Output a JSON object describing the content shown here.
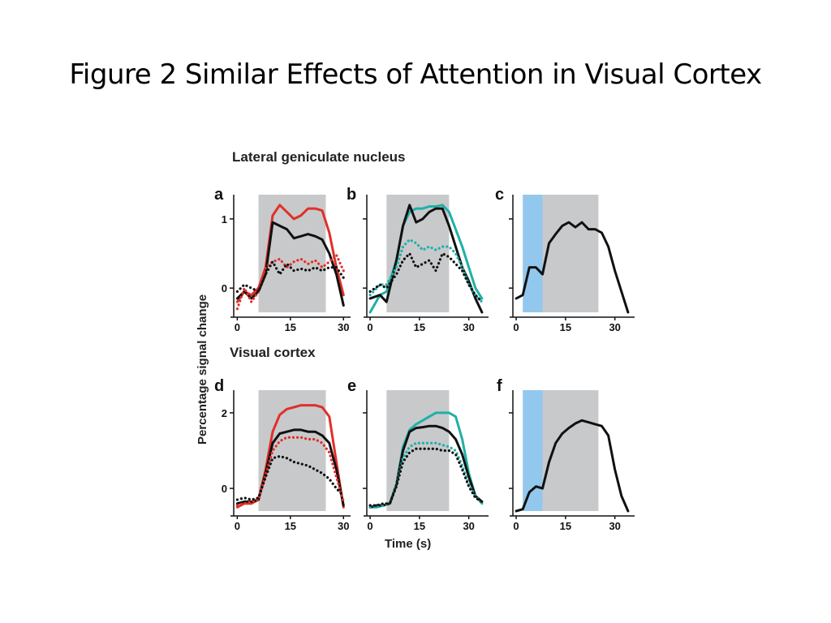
{
  "slide": {
    "title": "Figure 2 Similar Effects of Attention in Visual Cortex"
  },
  "figure": {
    "top_section_label": "Lateral geniculate nucleus",
    "bottom_section_label": "Visual cortex",
    "ylabel": "Percentage signal change",
    "xlabel": "Time (s)"
  },
  "colors": {
    "red": "#e0302a",
    "teal": "#1fb0a8",
    "black": "#111111",
    "gray_band": "#c8c9cb",
    "blue_band": "#93c8ee"
  },
  "chart_data": [
    {
      "panel": "a",
      "type": "line",
      "xlim": [
        -1,
        32
      ],
      "ylim": [
        -0.35,
        1.35
      ],
      "xticks": [
        0,
        15,
        30
      ],
      "yticks": [
        {
          "v": 1,
          "label": "1"
        },
        {
          "v": 0,
          "label": "0"
        }
      ],
      "bands": [
        {
          "from": 6,
          "to": 25,
          "color": "gray"
        }
      ],
      "series": [
        {
          "name": "attended (red)",
          "color": "red",
          "style": "solid",
          "x": [
            0,
            2,
            4,
            6,
            8,
            10,
            12,
            14,
            16,
            18,
            20,
            22,
            24,
            26,
            28,
            30
          ],
          "y": [
            -0.2,
            -0.05,
            -0.1,
            0.0,
            0.3,
            1.05,
            1.2,
            1.1,
            1.0,
            1.05,
            1.15,
            1.15,
            1.12,
            0.8,
            0.3,
            -0.1
          ]
        },
        {
          "name": "attended (black)",
          "color": "black",
          "style": "solid",
          "x": [
            0,
            2,
            4,
            6,
            8,
            10,
            12,
            14,
            16,
            18,
            20,
            22,
            24,
            26,
            28,
            30
          ],
          "y": [
            -0.15,
            -0.05,
            -0.15,
            -0.05,
            0.2,
            0.95,
            0.9,
            0.85,
            0.72,
            0.75,
            0.78,
            0.75,
            0.7,
            0.5,
            0.2,
            -0.25
          ]
        },
        {
          "name": "unattended (red)",
          "color": "red",
          "style": "dotted",
          "x": [
            0,
            2,
            4,
            6,
            8,
            10,
            12,
            14,
            16,
            18,
            20,
            22,
            24,
            26,
            28,
            30
          ],
          "y": [
            -0.3,
            0.0,
            -0.2,
            -0.05,
            0.3,
            0.38,
            0.42,
            0.3,
            0.38,
            0.42,
            0.35,
            0.4,
            0.3,
            0.38,
            0.48,
            0.25
          ]
        },
        {
          "name": "unattended (black)",
          "color": "black",
          "style": "dotted",
          "x": [
            0,
            2,
            4,
            6,
            8,
            10,
            12,
            14,
            16,
            18,
            20,
            22,
            24,
            26,
            28,
            30
          ],
          "y": [
            -0.05,
            0.05,
            0.0,
            -0.05,
            0.2,
            0.38,
            0.2,
            0.35,
            0.25,
            0.28,
            0.25,
            0.3,
            0.25,
            0.3,
            0.3,
            0.15
          ]
        }
      ]
    },
    {
      "panel": "b",
      "type": "line",
      "xlim": [
        -1,
        36
      ],
      "ylim": [
        -0.35,
        1.35
      ],
      "xticks": [
        0,
        15,
        30
      ],
      "yticks": [
        {
          "v": 1,
          "label": ""
        },
        {
          "v": 0,
          "label": ""
        }
      ],
      "bands": [
        {
          "from": 5,
          "to": 24,
          "color": "gray"
        }
      ],
      "series": [
        {
          "name": "attended (teal)",
          "color": "teal",
          "style": "solid",
          "x": [
            0,
            3,
            5,
            8,
            10,
            12,
            14,
            16,
            18,
            20,
            22,
            24,
            26,
            28,
            30,
            32,
            34
          ],
          "y": [
            -0.35,
            -0.1,
            -0.05,
            0.4,
            0.9,
            1.1,
            1.15,
            1.15,
            1.18,
            1.18,
            1.2,
            1.1,
            0.85,
            0.6,
            0.3,
            0.0,
            -0.15
          ]
        },
        {
          "name": "attended (black)",
          "color": "black",
          "style": "solid",
          "x": [
            0,
            3,
            5,
            8,
            10,
            12,
            14,
            16,
            18,
            20,
            22,
            24,
            26,
            28,
            30,
            32,
            34
          ],
          "y": [
            -0.15,
            -0.1,
            -0.2,
            0.4,
            0.9,
            1.2,
            0.95,
            1.0,
            1.1,
            1.15,
            1.15,
            0.9,
            0.6,
            0.3,
            0.1,
            -0.15,
            -0.35
          ]
        },
        {
          "name": "unattended (teal)",
          "color": "teal",
          "style": "dotted",
          "x": [
            0,
            3,
            5,
            8,
            10,
            12,
            14,
            16,
            18,
            20,
            22,
            24,
            26,
            28,
            30,
            32,
            34
          ],
          "y": [
            -0.1,
            0.05,
            0.05,
            0.3,
            0.6,
            0.7,
            0.65,
            0.55,
            0.6,
            0.55,
            0.6,
            0.6,
            0.5,
            0.3,
            0.05,
            -0.1,
            -0.2
          ]
        },
        {
          "name": "unattended (black)",
          "color": "black",
          "style": "dotted",
          "x": [
            0,
            3,
            5,
            8,
            10,
            12,
            14,
            16,
            18,
            20,
            22,
            24,
            26,
            28,
            30,
            32,
            34
          ],
          "y": [
            -0.05,
            0.05,
            0.0,
            0.2,
            0.4,
            0.5,
            0.3,
            0.35,
            0.4,
            0.25,
            0.5,
            0.45,
            0.35,
            0.25,
            0.05,
            -0.1,
            -0.2
          ]
        }
      ]
    },
    {
      "panel": "c",
      "type": "line",
      "xlim": [
        -1,
        36
      ],
      "ylim": [
        -0.35,
        1.35
      ],
      "xticks": [
        0,
        15,
        30
      ],
      "yticks": [
        {
          "v": 1,
          "label": ""
        },
        {
          "v": 0,
          "label": ""
        }
      ],
      "bands": [
        {
          "from": 2,
          "to": 8,
          "color": "blue"
        },
        {
          "from": 8,
          "to": 25,
          "color": "gray"
        }
      ],
      "series": [
        {
          "name": "response",
          "color": "black",
          "style": "solid",
          "x": [
            0,
            2,
            4,
            6,
            8,
            10,
            12,
            14,
            16,
            18,
            20,
            22,
            24,
            26,
            28,
            30,
            32,
            34
          ],
          "y": [
            -0.15,
            -0.1,
            0.3,
            0.3,
            0.2,
            0.65,
            0.78,
            0.9,
            0.95,
            0.88,
            0.95,
            0.85,
            0.85,
            0.8,
            0.6,
            0.25,
            -0.05,
            -0.35
          ]
        }
      ]
    },
    {
      "panel": "d",
      "type": "line",
      "xlim": [
        -1,
        32
      ],
      "ylim": [
        -0.6,
        2.6
      ],
      "xticks": [
        0,
        15,
        30
      ],
      "yticks": [
        {
          "v": 2,
          "label": "2"
        },
        {
          "v": 0,
          "label": "0"
        }
      ],
      "bands": [
        {
          "from": 6,
          "to": 25,
          "color": "gray"
        }
      ],
      "series": [
        {
          "name": "attended (red)",
          "color": "red",
          "style": "solid",
          "x": [
            0,
            2,
            4,
            6,
            8,
            10,
            12,
            14,
            16,
            18,
            20,
            22,
            24,
            26,
            28,
            30
          ],
          "y": [
            -0.5,
            -0.4,
            -0.4,
            -0.3,
            0.5,
            1.5,
            1.95,
            2.1,
            2.15,
            2.2,
            2.2,
            2.2,
            2.15,
            1.9,
            0.7,
            -0.5
          ]
        },
        {
          "name": "attended (black)",
          "color": "black",
          "style": "solid",
          "x": [
            0,
            2,
            4,
            6,
            8,
            10,
            12,
            14,
            16,
            18,
            20,
            22,
            24,
            26,
            28,
            30
          ],
          "y": [
            -0.4,
            -0.35,
            -0.35,
            -0.3,
            0.4,
            1.2,
            1.45,
            1.5,
            1.55,
            1.55,
            1.5,
            1.5,
            1.4,
            1.2,
            0.5,
            -0.45
          ]
        },
        {
          "name": "unattended (red)",
          "color": "red",
          "style": "dotted",
          "x": [
            0,
            2,
            4,
            6,
            8,
            10,
            12,
            14,
            16,
            18,
            20,
            22,
            24,
            26,
            28,
            30
          ],
          "y": [
            -0.45,
            -0.4,
            -0.35,
            -0.3,
            0.35,
            1.0,
            1.25,
            1.35,
            1.35,
            1.35,
            1.3,
            1.3,
            1.2,
            0.95,
            0.3,
            -0.35
          ]
        },
        {
          "name": "unattended (black)",
          "color": "black",
          "style": "dotted",
          "x": [
            0,
            2,
            4,
            6,
            8,
            10,
            12,
            14,
            16,
            18,
            20,
            22,
            24,
            26,
            28,
            30
          ],
          "y": [
            -0.3,
            -0.25,
            -0.3,
            -0.25,
            0.3,
            0.8,
            0.85,
            0.8,
            0.7,
            0.65,
            0.6,
            0.5,
            0.4,
            0.25,
            0.0,
            -0.2
          ]
        }
      ]
    },
    {
      "panel": "e",
      "type": "line",
      "xlim": [
        -1,
        36
      ],
      "ylim": [
        -0.6,
        2.6
      ],
      "xticks": [
        0,
        15,
        30
      ],
      "yticks": [
        {
          "v": 2,
          "label": ""
        },
        {
          "v": 0,
          "label": ""
        }
      ],
      "bands": [
        {
          "from": 5,
          "to": 24,
          "color": "gray"
        }
      ],
      "series": [
        {
          "name": "attended (teal)",
          "color": "teal",
          "style": "solid",
          "x": [
            0,
            2,
            4,
            6,
            8,
            10,
            12,
            14,
            16,
            18,
            20,
            22,
            24,
            26,
            28,
            30,
            32,
            34
          ],
          "y": [
            -0.5,
            -0.5,
            -0.45,
            -0.4,
            0.1,
            1.1,
            1.55,
            1.7,
            1.8,
            1.9,
            2.0,
            2.0,
            2.0,
            1.9,
            1.3,
            0.4,
            -0.2,
            -0.4
          ]
        },
        {
          "name": "attended (black)",
          "color": "black",
          "style": "solid",
          "x": [
            0,
            2,
            4,
            6,
            8,
            10,
            12,
            14,
            16,
            18,
            20,
            22,
            24,
            26,
            28,
            30,
            32,
            34
          ],
          "y": [
            -0.5,
            -0.45,
            -0.45,
            -0.4,
            0.1,
            1.0,
            1.5,
            1.6,
            1.62,
            1.65,
            1.65,
            1.6,
            1.5,
            1.3,
            0.9,
            0.3,
            -0.2,
            -0.35
          ]
        },
        {
          "name": "unattended (teal)",
          "color": "teal",
          "style": "dotted",
          "x": [
            0,
            2,
            4,
            6,
            8,
            10,
            12,
            14,
            16,
            18,
            20,
            22,
            24,
            26,
            28,
            30,
            32,
            34
          ],
          "y": [
            -0.5,
            -0.45,
            -0.45,
            -0.4,
            0.1,
            0.8,
            1.1,
            1.2,
            1.2,
            1.2,
            1.2,
            1.15,
            1.1,
            1.0,
            0.6,
            0.1,
            -0.2,
            -0.4
          ]
        },
        {
          "name": "unattended (black)",
          "color": "black",
          "style": "dotted",
          "x": [
            0,
            2,
            4,
            6,
            8,
            10,
            12,
            14,
            16,
            18,
            20,
            22,
            24,
            26,
            28,
            30,
            32,
            34
          ],
          "y": [
            -0.45,
            -0.45,
            -0.4,
            -0.4,
            0.05,
            0.7,
            0.95,
            1.05,
            1.05,
            1.05,
            1.05,
            1.0,
            1.0,
            0.9,
            0.5,
            0.05,
            -0.25,
            -0.35
          ]
        }
      ]
    },
    {
      "panel": "f",
      "type": "line",
      "xlim": [
        -1,
        36
      ],
      "ylim": [
        -0.6,
        2.6
      ],
      "xticks": [
        0,
        15,
        30
      ],
      "yticks": [
        {
          "v": 2,
          "label": ""
        },
        {
          "v": 0,
          "label": ""
        }
      ],
      "bands": [
        {
          "from": 2,
          "to": 8,
          "color": "blue"
        },
        {
          "from": 8,
          "to": 25,
          "color": "gray"
        }
      ],
      "series": [
        {
          "name": "response",
          "color": "black",
          "style": "solid",
          "x": [
            0,
            2,
            4,
            6,
            8,
            10,
            12,
            14,
            16,
            18,
            20,
            22,
            24,
            26,
            28,
            30,
            32,
            34
          ],
          "y": [
            -0.6,
            -0.55,
            -0.1,
            0.05,
            0.0,
            0.7,
            1.2,
            1.45,
            1.6,
            1.72,
            1.8,
            1.75,
            1.7,
            1.65,
            1.4,
            0.5,
            -0.2,
            -0.6
          ]
        }
      ]
    }
  ]
}
